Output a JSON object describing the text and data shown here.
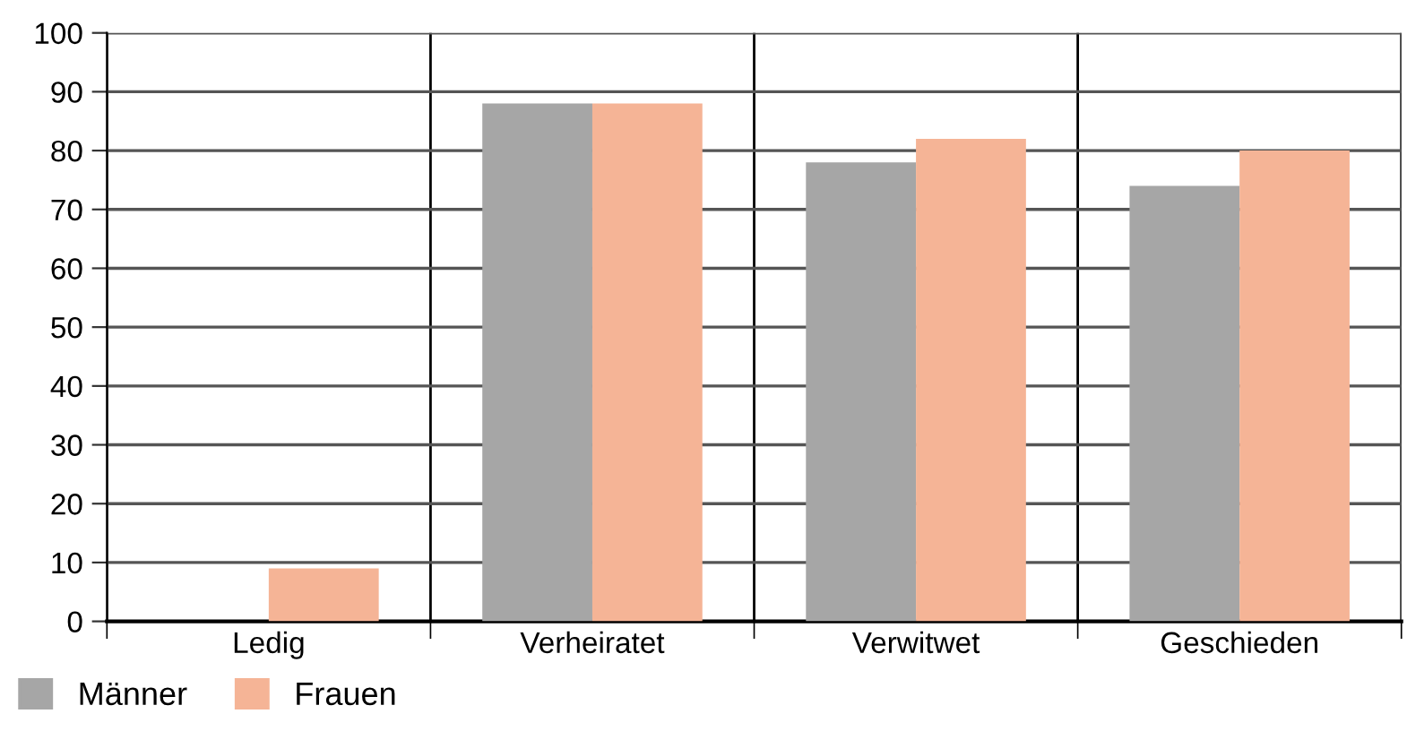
{
  "chart_data": {
    "type": "bar",
    "categories": [
      "Ledig",
      "Verheiratet",
      "Verwitwet",
      "Geschieden"
    ],
    "series": [
      {
        "name": "Männer",
        "color": "#a6a6a6",
        "values": [
          null,
          88,
          78,
          74
        ]
      },
      {
        "name": "Frauen",
        "color": "#f5b496",
        "values": [
          9,
          88,
          82,
          80
        ]
      }
    ],
    "ylim": [
      0,
      100
    ],
    "yticks": [
      0,
      10,
      20,
      30,
      40,
      50,
      60,
      70,
      80,
      90,
      100
    ],
    "grid": true,
    "legend": "bottom left"
  }
}
